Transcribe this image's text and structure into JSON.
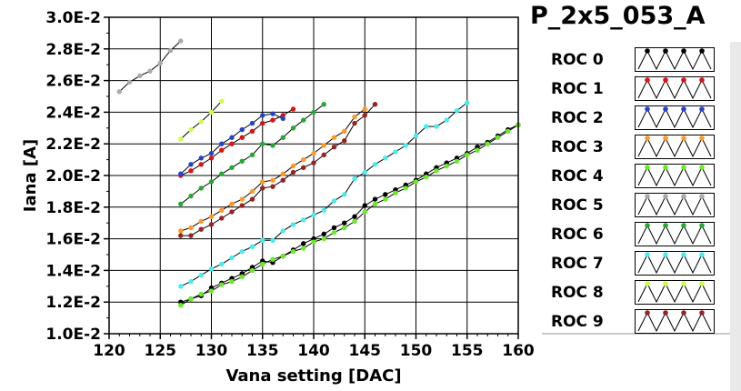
{
  "title": "P_2x5_053_A",
  "chart_data": {
    "type": "line",
    "xlabel": "Vana setting [DAC]",
    "ylabel": "Iana [A]",
    "xlim": [
      120,
      160
    ],
    "ylim": [
      0.01,
      0.03
    ],
    "xticks": [
      "120",
      "125",
      "130",
      "135",
      "140",
      "145",
      "150",
      "155",
      "160"
    ],
    "yticks": [
      "1.0E-2",
      "1.2E-2",
      "1.4E-2",
      "1.6E-2",
      "1.8E-2",
      "2.0E-2",
      "2.2E-2",
      "2.4E-2",
      "2.6E-2",
      "2.8E-2",
      "3.0E-2"
    ],
    "grid": true,
    "legend_position": "right",
    "series": [
      {
        "name": "ROC 0",
        "color": "#000000",
        "x": [
          127,
          128,
          129,
          130,
          131,
          132,
          133,
          134,
          135,
          136,
          137,
          138,
          139,
          140,
          141,
          142,
          143,
          144,
          145,
          146,
          147,
          148,
          149,
          150,
          151,
          152,
          153,
          154,
          155,
          156,
          157,
          158,
          159,
          160
        ],
        "y": [
          0.012,
          0.0122,
          0.0124,
          0.0129,
          0.0132,
          0.0135,
          0.0138,
          0.0142,
          0.0146,
          0.0145,
          0.0149,
          0.0153,
          0.0157,
          0.016,
          0.0163,
          0.0167,
          0.017,
          0.0174,
          0.0181,
          0.0185,
          0.0188,
          0.0191,
          0.0194,
          0.0197,
          0.0201,
          0.0205,
          0.0208,
          0.0211,
          0.0214,
          0.0218,
          0.0221,
          0.0225,
          0.0229,
          0.0232
        ]
      },
      {
        "name": "ROC 1",
        "color": "#dd1111",
        "x": [
          127,
          128,
          129,
          130,
          131,
          132,
          133,
          134,
          135,
          136,
          137,
          138
        ],
        "y": [
          0.02,
          0.0203,
          0.0207,
          0.0211,
          0.0216,
          0.022,
          0.0224,
          0.0228,
          0.0233,
          0.0235,
          0.0238,
          0.0242
        ]
      },
      {
        "name": "ROC 2",
        "color": "#2244cc",
        "x": [
          127,
          128,
          129,
          130,
          131,
          132,
          133,
          134,
          135,
          136,
          137
        ],
        "y": [
          0.0201,
          0.0207,
          0.0211,
          0.0214,
          0.022,
          0.0224,
          0.0229,
          0.0233,
          0.0238,
          0.0239,
          0.0236
        ]
      },
      {
        "name": "ROC 3",
        "color": "#ff9922",
        "x": [
          127,
          128,
          129,
          130,
          131,
          132,
          133,
          134,
          135,
          136,
          137,
          138,
          139,
          140,
          141,
          142,
          143,
          144,
          145
        ],
        "y": [
          0.0165,
          0.0167,
          0.0171,
          0.0174,
          0.0178,
          0.0182,
          0.0185,
          0.019,
          0.0196,
          0.0197,
          0.0201,
          0.0206,
          0.021,
          0.0214,
          0.0219,
          0.0224,
          0.0228,
          0.0237,
          0.0242
        ]
      },
      {
        "name": "ROC 4",
        "color": "#66ee22",
        "x": [
          127,
          128,
          129,
          130,
          131,
          132,
          133,
          134,
          135,
          136,
          137,
          138,
          139,
          140,
          141,
          142,
          143,
          144,
          145,
          146,
          147,
          148,
          149,
          150,
          151,
          152,
          153,
          154,
          155,
          156,
          157,
          158,
          159,
          160
        ],
        "y": [
          0.0118,
          0.0122,
          0.0125,
          0.0127,
          0.0131,
          0.0133,
          0.0136,
          0.014,
          0.0144,
          0.0147,
          0.0149,
          0.0152,
          0.0154,
          0.0158,
          0.016,
          0.0164,
          0.0167,
          0.0171,
          0.0177,
          0.0182,
          0.0185,
          0.0189,
          0.0192,
          0.0196,
          0.0199,
          0.0203,
          0.0206,
          0.0209,
          0.0213,
          0.0216,
          0.022,
          0.0224,
          0.0228,
          0.0232
        ]
      },
      {
        "name": "ROC 5",
        "color": "#aaaaaa",
        "x": [
          121,
          122,
          123,
          124,
          125,
          126,
          127
        ],
        "y": [
          0.0253,
          0.0259,
          0.0263,
          0.0266,
          0.0271,
          0.0279,
          0.0285
        ]
      },
      {
        "name": "ROC 6",
        "color": "#22aa33",
        "x": [
          127,
          128,
          129,
          130,
          131,
          132,
          133,
          134,
          135,
          136,
          137,
          138,
          139,
          140,
          141
        ],
        "y": [
          0.0182,
          0.0187,
          0.0192,
          0.0196,
          0.0201,
          0.0205,
          0.0209,
          0.0213,
          0.022,
          0.0219,
          0.0224,
          0.023,
          0.0235,
          0.024,
          0.0245
        ]
      },
      {
        "name": "ROC 7",
        "color": "#44eeee",
        "x": [
          127,
          128,
          129,
          130,
          131,
          132,
          133,
          134,
          135,
          136,
          137,
          138,
          139,
          140,
          141,
          142,
          143,
          144,
          145,
          146,
          147,
          148,
          149,
          150,
          151,
          152,
          153,
          154,
          155
        ],
        "y": [
          0.013,
          0.0133,
          0.0137,
          0.0141,
          0.0144,
          0.0148,
          0.0152,
          0.0155,
          0.0159,
          0.0159,
          0.0165,
          0.0169,
          0.0172,
          0.0175,
          0.0178,
          0.0184,
          0.0188,
          0.0198,
          0.0202,
          0.0207,
          0.0211,
          0.0215,
          0.0219,
          0.0225,
          0.0231,
          0.0231,
          0.0235,
          0.0241,
          0.0246
        ]
      },
      {
        "name": "ROC 8",
        "color": "#ccff44",
        "x": [
          127,
          128,
          129,
          130,
          131
        ],
        "y": [
          0.0223,
          0.0229,
          0.0234,
          0.024,
          0.0247
        ]
      },
      {
        "name": "ROC 9",
        "color": "#992222",
        "x": [
          127,
          128,
          129,
          130,
          131,
          132,
          133,
          134,
          135,
          136,
          137,
          138,
          139,
          140,
          141,
          142,
          143,
          144,
          145,
          146
        ],
        "y": [
          0.0162,
          0.0162,
          0.0166,
          0.0169,
          0.0173,
          0.0177,
          0.0181,
          0.0185,
          0.0192,
          0.0193,
          0.0197,
          0.0202,
          0.0205,
          0.0208,
          0.0213,
          0.0218,
          0.0222,
          0.0233,
          0.0238,
          0.0245
        ]
      }
    ]
  }
}
